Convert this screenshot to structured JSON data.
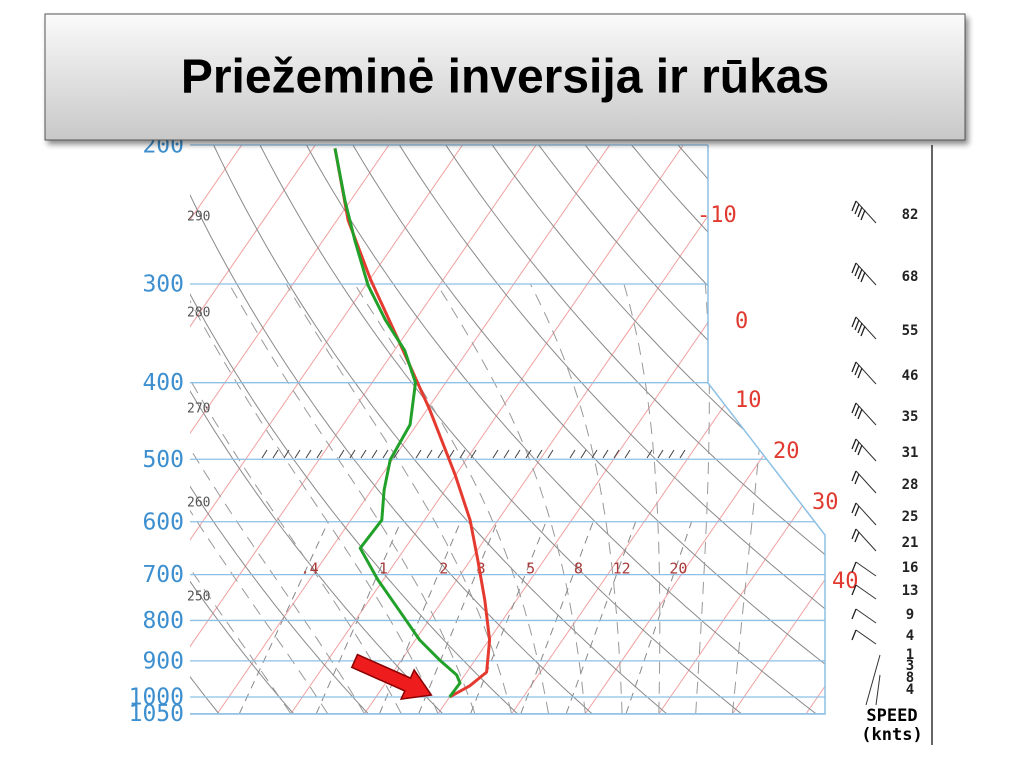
{
  "title": "Priežeminė inversija ir rūkas",
  "chart_data": {
    "type": "skewt",
    "log_scale": true,
    "ylim": [
      1050,
      200
    ],
    "yticks": [
      200,
      300,
      400,
      500,
      600,
      700,
      800,
      900,
      1000,
      1050
    ],
    "temperature_ticks": [
      -10,
      0,
      10,
      20,
      30,
      40
    ],
    "mixing_ratio_ticks": [
      {
        "value": 0.4,
        "label": ".4"
      },
      1,
      2,
      3,
      5,
      8,
      12,
      20
    ],
    "theta_ticks": [
      290,
      280,
      270,
      260,
      250
    ],
    "series": [
      {
        "color": "#e53a2f",
        "pressure": [
          1000,
          968,
          930,
          847,
          754,
          671,
          597,
          523,
          433,
          358,
          296,
          249,
          202
        ],
        "temperature": [
          0,
          1.7,
          2.7,
          0.1,
          -4.3,
          -9.0,
          -13.8,
          -20.1,
          -29.6,
          -39.7,
          -49.9,
          -58.5,
          -67.0
        ]
      },
      {
        "color": "#22a12a",
        "pressure": [
          1000,
          960,
          938,
          898,
          847,
          780,
          711,
          648,
          597,
          547,
          501,
          452,
          400,
          364,
          333,
          301,
          264,
          235,
          202
        ],
        "temperature": [
          0,
          0.1,
          -1.1,
          -4.8,
          -9.4,
          -14.7,
          -20.7,
          -26.1,
          -25.8,
          -28.3,
          -30.3,
          -30.9,
          -34.1,
          -38.6,
          -44.1,
          -49.7,
          -55.7,
          -60.8,
          -67.0
        ]
      }
    ],
    "wind": {
      "title": "SPEED",
      "unit": "(knts)",
      "speeds": [
        82,
        68,
        55,
        46,
        35,
        31,
        28,
        25,
        21,
        16,
        13,
        9,
        4,
        1,
        3,
        8,
        4
      ]
    }
  }
}
